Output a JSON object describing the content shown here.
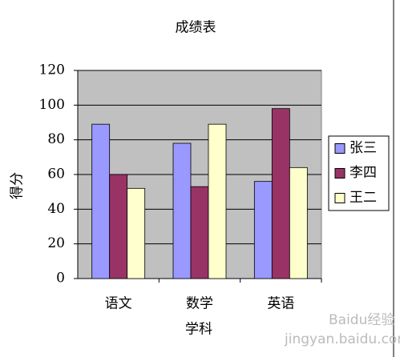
{
  "chart_data": {
    "type": "bar",
    "title": "成绩表",
    "x_label": "学科",
    "y_label": "得分",
    "categories": [
      "语文",
      "数学",
      "英语"
    ],
    "series": [
      {
        "name": "张三",
        "color": "#9999ff",
        "values": [
          89,
          78,
          56
        ]
      },
      {
        "name": "李四",
        "color": "#993366",
        "values": [
          60,
          53,
          98
        ]
      },
      {
        "name": "王二",
        "color": "#ffffcc",
        "values": [
          52,
          89,
          64
        ]
      }
    ],
    "ylim": [
      0,
      120
    ],
    "yticks": [
      0,
      20,
      40,
      60,
      80,
      100,
      120
    ],
    "grid": true,
    "legend": "right",
    "plot_background": "#c0c0c0"
  },
  "watermark": {
    "brand": "Baidu经验",
    "url": "jingyan.baidu.com"
  }
}
